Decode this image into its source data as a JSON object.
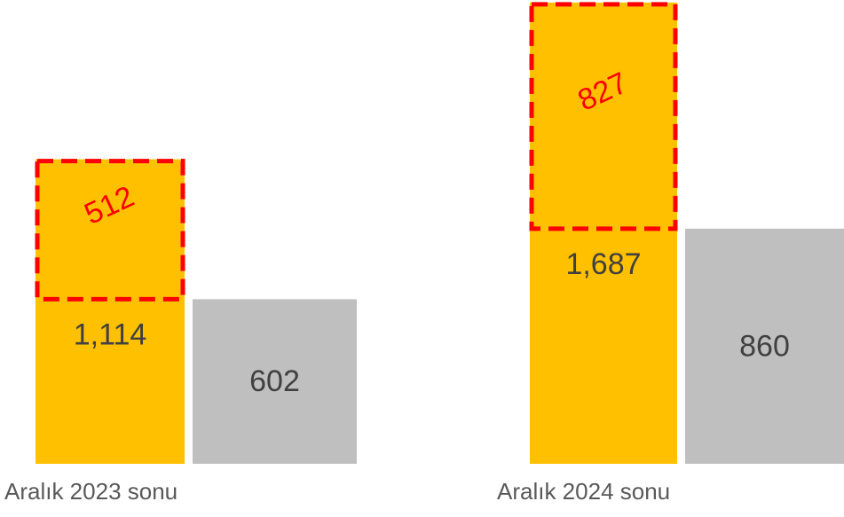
{
  "chart_data": {
    "type": "bar",
    "categories": [
      "Aralık 2023 sonu",
      "Aralık 2024 sonu"
    ],
    "series": [
      {
        "color": "#FFC000",
        "values": [
          1114,
          1687
        ],
        "value_labels": [
          "1,114",
          "1,687"
        ]
      },
      {
        "color": "#BFBFBF",
        "values": [
          602,
          860
        ]
      }
    ],
    "highlight": {
      "color": "#FF0000",
      "values": [
        512,
        827
      ]
    },
    "ylim": [
      0,
      1690
    ]
  }
}
